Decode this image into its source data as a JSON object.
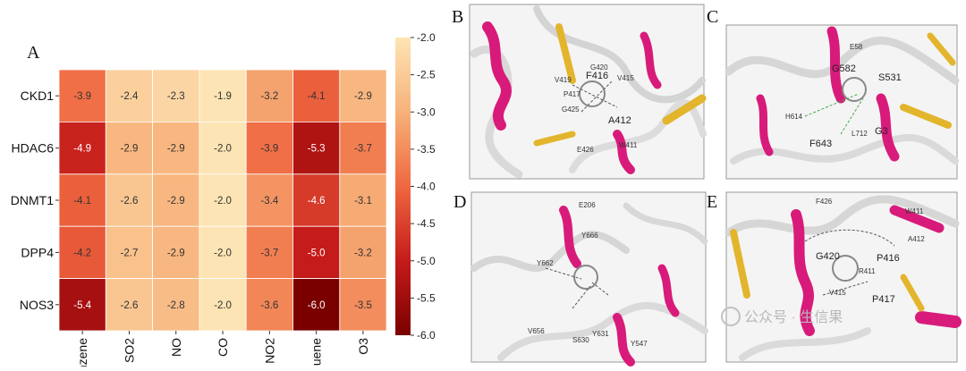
{
  "panels": {
    "a_letter": "A",
    "b_letter": "B",
    "c_letter": "C",
    "d_letter": "D",
    "e_letter": "E"
  },
  "chart_data": {
    "type": "heatmap",
    "title": "",
    "rows": [
      "CKD1",
      "HDAC6",
      "DNMT1",
      "DPP4",
      "NOS3"
    ],
    "columns": [
      "Benzene",
      "SO2",
      "NO",
      "CO",
      "NO2",
      "Toluene",
      "O3"
    ],
    "values": [
      [
        -3.9,
        -2.4,
        -2.3,
        -1.9,
        -3.2,
        -4.1,
        -2.9
      ],
      [
        -4.9,
        -2.9,
        -2.9,
        -2.0,
        -3.9,
        -5.3,
        -3.7
      ],
      [
        -4.1,
        -2.6,
        -2.9,
        -2.0,
        -3.4,
        -4.6,
        -3.1
      ],
      [
        -4.2,
        -2.7,
        -2.9,
        -2.0,
        -3.7,
        -5.0,
        -3.2
      ],
      [
        -5.4,
        -2.6,
        -2.8,
        -2.0,
        -3.6,
        -6.0,
        -3.5
      ]
    ],
    "colorbar": {
      "min": -6.0,
      "max": -2.0,
      "ticks": [
        -2.0,
        -2.5,
        -3.0,
        -3.5,
        -4.0,
        -4.5,
        -5.0,
        -5.5,
        -6.0
      ],
      "tick_labels": [
        "-2.0",
        "-2.5",
        "-3.0",
        "-3.5",
        "-4.0",
        "-4.5",
        "-5.0",
        "-5.5",
        "-6.0"
      ],
      "colormap": "OrRd-reversed"
    },
    "colors": {
      "light": "#fde4b4",
      "mid": "#ef6840",
      "dark": "#7a0000"
    }
  },
  "structures": {
    "b_residues": [
      "F416",
      "G420",
      "V415",
      "A412",
      "W411",
      "E426",
      "G425",
      "P417",
      "V419"
    ],
    "c_residues": [
      "E58",
      "G582",
      "S531",
      "F643",
      "G3",
      "H614",
      "L712"
    ],
    "d_residues": [
      "E206",
      "Y666",
      "Y662",
      "V656",
      "S630",
      "Y631",
      "Y547"
    ],
    "e_residues": [
      "F426",
      "W411",
      "G420",
      "P416",
      "P417",
      "V415",
      "A412",
      "R411"
    ]
  },
  "watermark": "公众号 · 生信果"
}
